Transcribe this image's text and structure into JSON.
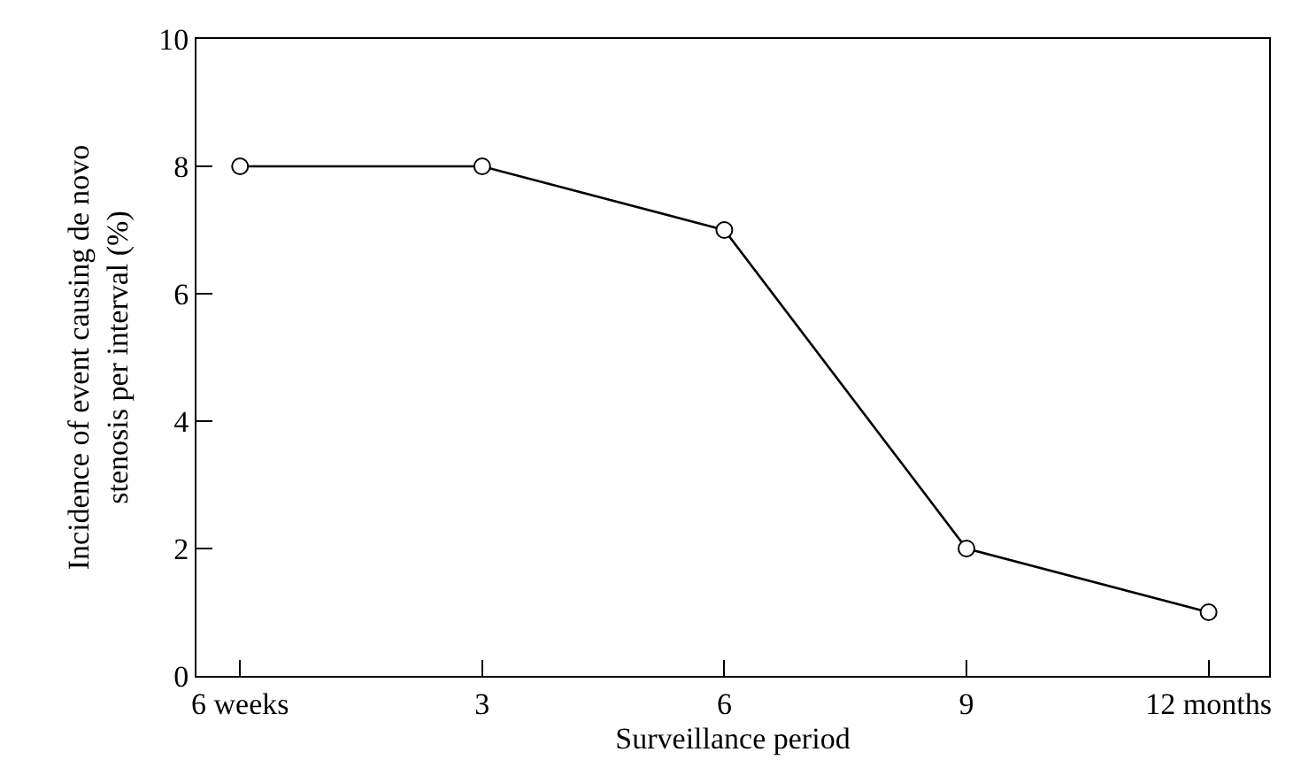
{
  "chart_data": {
    "type": "line",
    "xlabel": "Surveillance period",
    "ylabel": "Incidence of event causing de novo\nstenosis per interval (%)",
    "categories": [
      "6 weeks",
      "3",
      "6",
      "9",
      "12 months"
    ],
    "series": [
      {
        "color": "#000000",
        "values": [
          8,
          8,
          7,
          2,
          1
        ]
      }
    ],
    "ylim": [
      0,
      10
    ],
    "yticks": [
      0,
      2,
      4,
      6,
      8,
      10
    ],
    "grid": false,
    "marker": "circle",
    "line_style": "solid"
  }
}
